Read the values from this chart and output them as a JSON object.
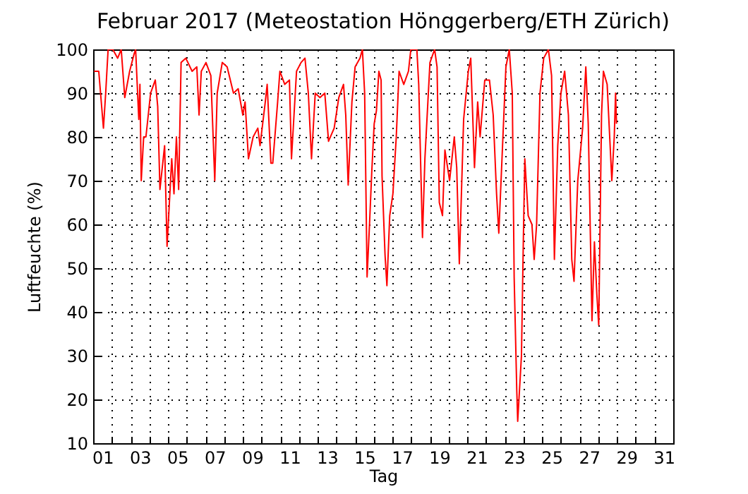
{
  "chart_data": {
    "type": "line",
    "title": "Februar 2017  (Meteostation Hönggerberg/ETH Zürich)",
    "xlabel": "Tag",
    "ylabel": "Luftfeuchte (%)",
    "xlim": [
      1,
      32
    ],
    "ylim": [
      10,
      100
    ],
    "xticks": [
      {
        "value": 1,
        "label": null
      },
      {
        "value": 2,
        "label": null
      },
      {
        "value": 3,
        "label": null
      },
      {
        "value": 4,
        "label": null
      },
      {
        "value": 5,
        "label": null
      },
      {
        "value": 6,
        "label": null
      },
      {
        "value": 7,
        "label": null
      },
      {
        "value": 8,
        "label": null
      },
      {
        "value": 9,
        "label": null
      },
      {
        "value": 10,
        "label": null
      },
      {
        "value": 11,
        "label": null
      },
      {
        "value": 12,
        "label": null
      },
      {
        "value": 13,
        "label": null
      },
      {
        "value": 14,
        "label": null
      },
      {
        "value": 15,
        "label": null
      },
      {
        "value": 16,
        "label": null
      },
      {
        "value": 17,
        "label": null
      },
      {
        "value": 18,
        "label": null
      },
      {
        "value": 19,
        "label": null
      },
      {
        "value": 20,
        "label": null
      },
      {
        "value": 21,
        "label": null
      },
      {
        "value": 22,
        "label": null
      },
      {
        "value": 23,
        "label": null
      },
      {
        "value": 24,
        "label": null
      },
      {
        "value": 25,
        "label": null
      },
      {
        "value": 26,
        "label": null
      },
      {
        "value": 27,
        "label": null
      },
      {
        "value": 28,
        "label": null
      },
      {
        "value": 29,
        "label": null
      },
      {
        "value": 30,
        "label": null
      },
      {
        "value": 31,
        "label": null
      },
      {
        "value": 32,
        "label": null
      },
      {
        "value": 1.5,
        "label": "01"
      },
      {
        "value": 3.5,
        "label": "03"
      },
      {
        "value": 5.5,
        "label": "05"
      },
      {
        "value": 7.5,
        "label": "07"
      },
      {
        "value": 9.5,
        "label": "09"
      },
      {
        "value": 11.5,
        "label": "11"
      },
      {
        "value": 13.5,
        "label": "13"
      },
      {
        "value": 15.5,
        "label": "15"
      },
      {
        "value": 17.5,
        "label": "17"
      },
      {
        "value": 19.5,
        "label": "19"
      },
      {
        "value": 21.5,
        "label": "21"
      },
      {
        "value": 23.5,
        "label": "23"
      },
      {
        "value": 25.5,
        "label": "25"
      },
      {
        "value": 27.5,
        "label": "27"
      },
      {
        "value": 29.5,
        "label": "29"
      },
      {
        "value": 31.5,
        "label": "31"
      }
    ],
    "yticks": [
      10,
      20,
      30,
      40,
      50,
      60,
      70,
      80,
      90,
      100
    ],
    "grid": true,
    "marker": "none",
    "line_style": "solid",
    "series": [
      {
        "color": "#ff0000",
        "x": [
          1.05,
          1.3,
          1.55,
          1.67,
          1.8,
          2.05,
          2.31,
          2.5,
          2.69,
          2.95,
          3.19,
          3.27,
          3.44,
          3.5,
          3.57,
          3.7,
          3.82,
          4.07,
          4.32,
          4.45,
          4.57,
          4.82,
          4.95,
          5.2,
          5.32,
          5.45,
          5.57,
          5.7,
          5.95,
          6.29,
          6.54,
          6.66,
          6.78,
          7.03,
          7.29,
          7.5,
          7.63,
          7.9,
          8.16,
          8.5,
          8.75,
          9.0,
          9.12,
          9.3,
          9.55,
          9.8,
          9.92,
          10.2,
          10.3,
          10.5,
          10.6,
          10.86,
          10.98,
          11.24,
          11.49,
          11.6,
          11.87,
          12.11,
          12.32,
          12.5,
          12.67,
          12.87,
          13.12,
          13.38,
          13.58,
          13.88,
          14.13,
          14.38,
          14.5,
          14.63,
          14.83,
          15.0,
          15.26,
          15.39,
          15.51,
          15.64,
          15.77,
          15.89,
          16.02,
          16.14,
          16.27,
          16.39,
          16.44,
          16.6,
          16.7,
          16.85,
          17.02,
          17.2,
          17.35,
          17.6,
          17.85,
          17.98,
          18.3,
          18.4,
          18.6,
          18.73,
          19.0,
          19.25,
          19.38,
          19.5,
          19.67,
          19.8,
          20.05,
          20.3,
          20.43,
          20.57,
          20.8,
          21.05,
          21.18,
          21.3,
          21.38,
          21.55,
          21.68,
          21.93,
          22.18,
          22.38,
          22.56,
          22.68,
          22.88,
          23.06,
          23.24,
          23.4,
          23.5,
          23.64,
          23.69,
          23.89,
          23.99,
          24.07,
          24.25,
          24.45,
          24.57,
          24.7,
          24.88,
          25.08,
          25.33,
          25.5,
          25.65,
          25.83,
          26.0,
          26.2,
          26.4,
          26.58,
          26.7,
          26.9,
          27.16,
          27.33,
          27.46,
          27.66,
          27.79,
          27.92,
          28.02,
          28.17,
          28.27,
          28.47,
          28.72,
          28.85,
          28.92,
          28.97
        ],
        "values": [
          95,
          95,
          82,
          90,
          100,
          100,
          98,
          100,
          89,
          95,
          99,
          100,
          84,
          92,
          70,
          80,
          80,
          90,
          93,
          87,
          68,
          78,
          55,
          75,
          67,
          80,
          68,
          97,
          98,
          95,
          96,
          85,
          95,
          97,
          94,
          70,
          90,
          97,
          96,
          90,
          91,
          85,
          88,
          75,
          80,
          82,
          78,
          88,
          92,
          74,
          74,
          88,
          95,
          92,
          93,
          75,
          95,
          97,
          98,
          90,
          75,
          90,
          89,
          90,
          79,
          82,
          89,
          92,
          85,
          69,
          88,
          96,
          98,
          100,
          90,
          48,
          60,
          72,
          83,
          86,
          95,
          93,
          71,
          53,
          46,
          62,
          67,
          80,
          95,
          92,
          95,
          100,
          100,
          92,
          57,
          75,
          97,
          100,
          96,
          65,
          62,
          77,
          70,
          80,
          73,
          51,
          84,
          95,
          98,
          83,
          73,
          88,
          80,
          93,
          93,
          85,
          67,
          58,
          78,
          96,
          100,
          90,
          48,
          22,
          15,
          30,
          56,
          75,
          62,
          60,
          52,
          60,
          90,
          98,
          100,
          94,
          52,
          78,
          90,
          95,
          85,
          52,
          47,
          70,
          82,
          96,
          83,
          38,
          56,
          44,
          37,
          85,
          95,
          92,
          70,
          80,
          90,
          83
        ]
      }
    ]
  }
}
